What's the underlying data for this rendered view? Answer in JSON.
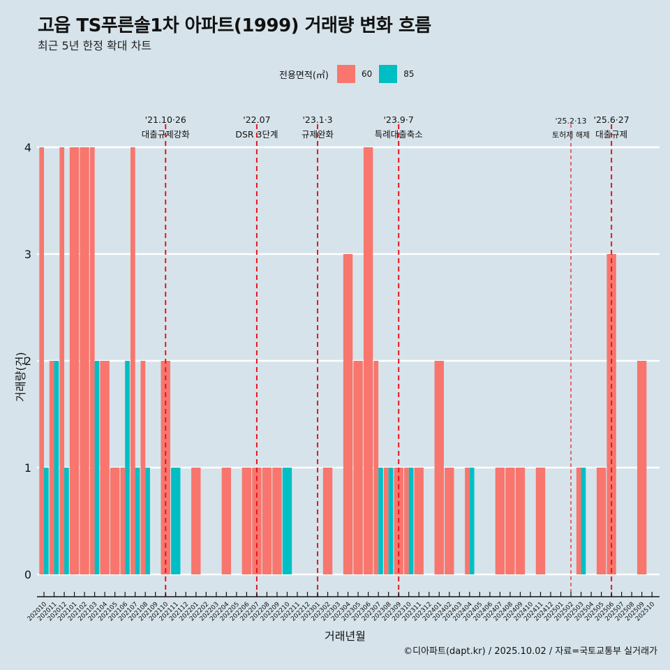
{
  "header": {
    "title": "고읍 TS푸른솔1차 아파트(1999) 거래량 변화 흐름",
    "subtitle": "최근 5년 한정 확대 차트"
  },
  "legend": {
    "title": "전용면적(㎡)",
    "items": [
      {
        "label": "60",
        "color": "#f8766d"
      },
      {
        "label": "85",
        "color": "#00bfc4"
      }
    ]
  },
  "footer": "©디아파트(dapt.kr) / 2025.10.02 / 자료=국토교통부 실거래가",
  "chart_data": {
    "type": "bar",
    "title": "고읍 TS푸른솔1차 아파트(1999) 거래량 변화 흐름",
    "subtitle": "최근 5년 한정 확대 차트",
    "xlabel": "거래년월",
    "ylabel": "거래량(건)",
    "ylim": [
      0,
      4
    ],
    "yticks": [
      0,
      1,
      2,
      3,
      4
    ],
    "grid": "horizontal",
    "legend_position": "top",
    "categories": [
      "202010",
      "202011",
      "202012",
      "202101",
      "202102",
      "202103",
      "202104",
      "202105",
      "202106",
      "202107",
      "202108",
      "202109",
      "202110",
      "202111",
      "202112",
      "202201",
      "202202",
      "202203",
      "202204",
      "202205",
      "202206",
      "202207",
      "202208",
      "202209",
      "202210",
      "202211",
      "202212",
      "202301",
      "202302",
      "202303",
      "202304",
      "202305",
      "202306",
      "202307",
      "202308",
      "202309",
      "202310",
      "202311",
      "202312",
      "202401",
      "202402",
      "202403",
      "202404",
      "202405",
      "202406",
      "202407",
      "202408",
      "202409",
      "202410",
      "202411",
      "202412",
      "202501",
      "202502",
      "202503",
      "202504",
      "202505",
      "202506",
      "202507",
      "202508",
      "202509",
      "202510"
    ],
    "series": [
      {
        "name": "60",
        "color": "#f8766d",
        "values": [
          4,
          2,
          4,
          4,
          4,
          4,
          2,
          1,
          1,
          4,
          2,
          0,
          2,
          0,
          0,
          1,
          0,
          0,
          1,
          0,
          1,
          1,
          1,
          1,
          0,
          0,
          0,
          0,
          1,
          0,
          3,
          2,
          4,
          2,
          1,
          1,
          1,
          1,
          0,
          2,
          1,
          0,
          1,
          0,
          0,
          1,
          1,
          1,
          0,
          1,
          0,
          0,
          0,
          1,
          0,
          1,
          3,
          0,
          0,
          2,
          0
        ]
      },
      {
        "name": "85",
        "color": "#00bfc4",
        "values": [
          1,
          2,
          1,
          0,
          0,
          2,
          0,
          0,
          2,
          1,
          1,
          0,
          0,
          1,
          0,
          0,
          0,
          0,
          0,
          0,
          0,
          0,
          0,
          0,
          1,
          0,
          0,
          0,
          0,
          0,
          0,
          0,
          0,
          1,
          1,
          0,
          1,
          0,
          0,
          0,
          0,
          0,
          1,
          0,
          0,
          0,
          0,
          0,
          0,
          0,
          0,
          0,
          0,
          1,
          0,
          0,
          0,
          0,
          0,
          0,
          0
        ]
      }
    ],
    "annotations": [
      {
        "month": "202110",
        "date": "'21.10·26",
        "label": "대출규제강화",
        "style": "dashed"
      },
      {
        "month": "202207",
        "date": "'22.07",
        "label": "DSR 3단계",
        "style": "dashed"
      },
      {
        "month": "202301",
        "date": "'23.1·3",
        "label": "규제완화",
        "style": "dashed"
      },
      {
        "month": "202309",
        "date": "'23.9·7",
        "label": "특례대출축소",
        "style": "dashed"
      },
      {
        "month": "202502",
        "date": "'25.2·13",
        "label": "토허제 해제",
        "style": "dashed-thin"
      },
      {
        "month": "202506",
        "date": "'25.6·27",
        "label": "대출규제",
        "style": "dashed"
      }
    ]
  }
}
